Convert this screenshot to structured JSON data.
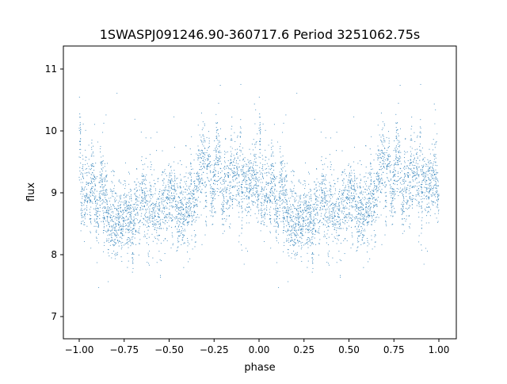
{
  "chart_data": {
    "type": "scatter",
    "title": "1SWASPJ091246.90-360717.6 Period 3251062.75s",
    "xlabel": "phase",
    "ylabel": "flux",
    "xlim": [
      -1.1,
      1.1
    ],
    "ylim": [
      6.63,
      11.35
    ],
    "x_ticks": [
      -1.0,
      -0.75,
      -0.5,
      -0.25,
      0.0,
      0.25,
      0.5,
      0.75,
      1.0
    ],
    "x_tick_labels": [
      "−1.00",
      "−0.75",
      "−0.50",
      "−0.25",
      "0.00",
      "0.25",
      "0.50",
      "0.75",
      "1.00"
    ],
    "y_ticks": [
      7,
      8,
      9,
      10,
      11
    ],
    "y_tick_labels": [
      "7",
      "8",
      "9",
      "10",
      "11"
    ],
    "grid": false,
    "marker_color": "#1f77b4",
    "point_count_per_cycle": 3000,
    "scatter_sigma": 0.28,
    "binned_mean_curve": {
      "phase": [
        0.0,
        0.05,
        0.1,
        0.15,
        0.2,
        0.25,
        0.3,
        0.35,
        0.4,
        0.45,
        0.5,
        0.55,
        0.6,
        0.65,
        0.7,
        0.75,
        0.8,
        0.85,
        0.9,
        0.95,
        1.0
      ],
      "flux": [
        9.1,
        9.05,
        8.95,
        8.7,
        8.5,
        8.5,
        8.6,
        8.8,
        8.85,
        8.65,
        8.7,
        8.85,
        8.95,
        9.1,
        9.2,
        9.25,
        9.3,
        9.35,
        9.35,
        9.25,
        9.1
      ]
    }
  }
}
